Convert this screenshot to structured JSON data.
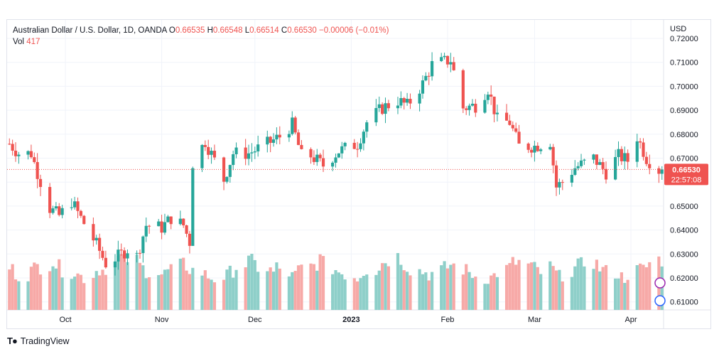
{
  "header": {
    "symbol": "Australian Dollar / U.S. Dollar, 1D, OANDA",
    "o_label": "O",
    "o_value": "0.66535",
    "h_label": "H",
    "h_value": "0.66548",
    "l_label": "L",
    "l_value": "0.66514",
    "c_label": "C",
    "c_value": "0.66530",
    "change": "−0.00006 (−0.01%)",
    "vol_label": "Vol",
    "vol_value": "417"
  },
  "price_tag": {
    "price": "0.66530",
    "countdown": "22:57:08"
  },
  "footer": {
    "brand": "TradingView"
  },
  "colors": {
    "up": "#26a69a",
    "down": "#ef5350",
    "up_volume": "#8ecfc9",
    "down_volume": "#f7a9a7",
    "grid": "#f0f3fa",
    "text": "#131722"
  },
  "chart_data": {
    "type": "candlestick",
    "currency_label": "USD",
    "y_ticks": [
      "0.72000",
      "0.71000",
      "0.70000",
      "0.69000",
      "0.68000",
      "0.67000",
      "0.66000",
      "0.65000",
      "0.64000",
      "0.63000",
      "0.62000",
      "0.61000"
    ],
    "ylim": [
      0.606,
      0.722
    ],
    "x_tick_labels": [
      {
        "label": "Oct",
        "date": "2022-10-01"
      },
      {
        "label": "Nov",
        "date": "2022-11-01"
      },
      {
        "label": "Dec",
        "date": "2022-12-01"
      },
      {
        "label": "2023",
        "date": "2023-01-01"
      },
      {
        "label": "Feb",
        "date": "2023-02-01"
      },
      {
        "label": "Mar",
        "date": "2023-03-01"
      },
      {
        "label": "Apr",
        "date": "2023-04-01"
      }
    ],
    "last_price": 0.6653,
    "grid": true,
    "close_path": [
      [
        "2022-09-13",
        0.676
      ],
      [
        "2022-09-16",
        0.672
      ],
      [
        "2022-09-20",
        0.672
      ],
      [
        "2022-09-22",
        0.664
      ],
      [
        "2022-09-26",
        0.649
      ],
      [
        "2022-09-29",
        0.646
      ],
      [
        "2022-10-03",
        0.652
      ],
      [
        "2022-10-06",
        0.645
      ],
      [
        "2022-10-11",
        0.634
      ],
      [
        "2022-10-14",
        0.626
      ],
      [
        "2022-10-18",
        0.629
      ],
      [
        "2022-10-21",
        0.632
      ],
      [
        "2022-10-24",
        0.629
      ],
      [
        "2022-10-27",
        0.642
      ],
      [
        "2022-11-01",
        0.641
      ],
      [
        "2022-11-04",
        0.645
      ],
      [
        "2022-11-08",
        0.642
      ],
      [
        "2022-11-10",
        0.635
      ],
      [
        "2022-11-11",
        0.668
      ],
      [
        "2022-11-15",
        0.677
      ],
      [
        "2022-11-21",
        0.661
      ],
      [
        "2022-11-24",
        0.672
      ],
      [
        "2022-11-29",
        0.672
      ],
      [
        "2022-12-05",
        0.676
      ],
      [
        "2022-12-09",
        0.679
      ],
      [
        "2022-12-13",
        0.684
      ],
      [
        "2022-12-16",
        0.671
      ],
      [
        "2022-12-19",
        0.671
      ],
      [
        "2022-12-23",
        0.667
      ],
      [
        "2022-12-28",
        0.673
      ],
      [
        "2023-01-03",
        0.676
      ],
      [
        "2023-01-06",
        0.685
      ],
      [
        "2023-01-11",
        0.691
      ],
      [
        "2023-01-16",
        0.694
      ],
      [
        "2023-01-19",
        0.692
      ],
      [
        "2023-01-24",
        0.701
      ],
      [
        "2023-01-27",
        0.709
      ],
      [
        "2023-02-02",
        0.711
      ],
      [
        "2023-02-06",
        0.691
      ],
      [
        "2023-02-10",
        0.692
      ],
      [
        "2023-02-14",
        0.699
      ],
      [
        "2023-02-17",
        0.686
      ],
      [
        "2023-02-21",
        0.685
      ],
      [
        "2023-02-24",
        0.675
      ],
      [
        "2023-03-01",
        0.675
      ],
      [
        "2023-03-06",
        0.677
      ],
      [
        "2023-03-08",
        0.658
      ],
      [
        "2023-03-10",
        0.66
      ],
      [
        "2023-03-14",
        0.666
      ],
      [
        "2023-03-20",
        0.67
      ],
      [
        "2023-03-24",
        0.664
      ],
      [
        "2023-03-28",
        0.671
      ],
      [
        "2023-03-31",
        0.669
      ],
      [
        "2023-04-03",
        0.679
      ],
      [
        "2023-04-06",
        0.67
      ],
      [
        "2023-04-10",
        0.665
      ],
      [
        "2023-04-11",
        0.6653
      ]
    ],
    "volume_pattern": [
      220,
      210,
      190,
      175,
      185,
      205,
      215,
      225,
      230,
      250,
      260,
      235,
      220,
      210,
      200,
      195,
      185,
      175,
      165,
      185,
      205,
      215,
      210,
      225,
      245,
      260,
      270,
      280,
      270,
      250,
      230,
      215,
      205,
      200,
      195,
      185,
      190,
      205,
      215,
      225,
      235,
      230,
      215,
      205,
      195,
      185,
      175,
      165,
      160,
      170,
      180,
      195,
      210,
      225,
      240,
      250,
      245,
      235,
      225,
      215,
      205,
      195
    ]
  }
}
